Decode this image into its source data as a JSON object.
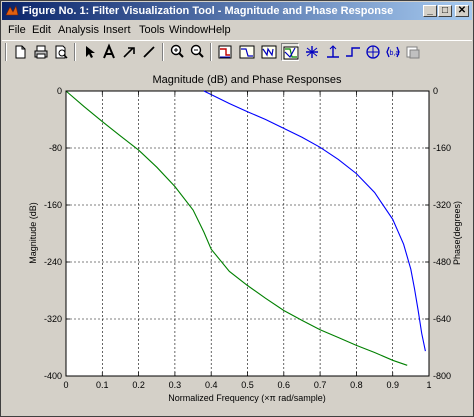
{
  "window": {
    "title": "Figure No. 1: Filter Visualization Tool - Magnitude and Phase Response",
    "controls": {
      "minimize": "_",
      "maximize": "□",
      "close": "✕"
    }
  },
  "menubar": [
    "File",
    "Edit",
    "Analysis",
    "Insert",
    "Tools",
    "Window",
    "Help"
  ],
  "toolbar": [
    "new-icon",
    "print-icon",
    "print-preview-icon",
    "arrow-icon",
    "text-icon",
    "line-arrow-icon",
    "line-icon",
    "zoom-in-icon",
    "zoom-out-icon",
    "filter-specs-icon",
    "magnitude-icon",
    "phase-icon",
    "magnitude-phase-icon",
    "group-delay-icon",
    "impulse-icon",
    "step-icon",
    "pole-zero-icon",
    "coefficients-icon",
    "info-icon"
  ],
  "chart_data": {
    "type": "line",
    "title": "Magnitude (dB) and Phase Responses",
    "xlabel": "Normalized Frequency  (×π rad/sample)",
    "ylabel_left": "Magnitude (dB)",
    "ylabel_right": "Phase(degrees)",
    "xlim": [
      0,
      1
    ],
    "ylim_left": [
      -400,
      0
    ],
    "ylim_right": [
      -800,
      0
    ],
    "xticks": [
      "0",
      "0.1",
      "0.2",
      "0.3",
      "0.4",
      "0.5",
      "0.6",
      "0.7",
      "0.8",
      "0.9",
      "1"
    ],
    "yticks_left": [
      "0",
      "-80",
      "-160",
      "-240",
      "-320",
      "-400"
    ],
    "yticks_right": [
      "0",
      "-160",
      "-320",
      "-480",
      "-640",
      "-800"
    ],
    "grid": true,
    "colors": {
      "magnitude": "#008000",
      "phase": "#0000ff"
    },
    "series": [
      {
        "axis": "left",
        "x": [
          0,
          0.05,
          0.1,
          0.15,
          0.2,
          0.25,
          0.3,
          0.35,
          0.38,
          0.4,
          0.45,
          0.5,
          0.55,
          0.6,
          0.65,
          0.7,
          0.75,
          0.8,
          0.85,
          0.9,
          0.94
        ],
        "values": [
          0,
          -22,
          -43,
          -63,
          -83,
          -107,
          -134,
          -167,
          -198,
          -222,
          -253,
          -273,
          -291,
          -308,
          -322,
          -335,
          -346,
          -357,
          -367,
          -378,
          -385
        ]
      },
      {
        "axis": "right",
        "x": [
          0.38,
          0.45,
          0.5,
          0.55,
          0.6,
          0.65,
          0.7,
          0.75,
          0.8,
          0.85,
          0.9,
          0.93,
          0.95,
          0.96,
          0.97,
          0.98,
          0.99
        ],
        "values": [
          0,
          -35,
          -58,
          -80,
          -105,
          -130,
          -158,
          -192,
          -232,
          -285,
          -360,
          -430,
          -500,
          -555,
          -615,
          -680,
          -730
        ]
      }
    ]
  }
}
